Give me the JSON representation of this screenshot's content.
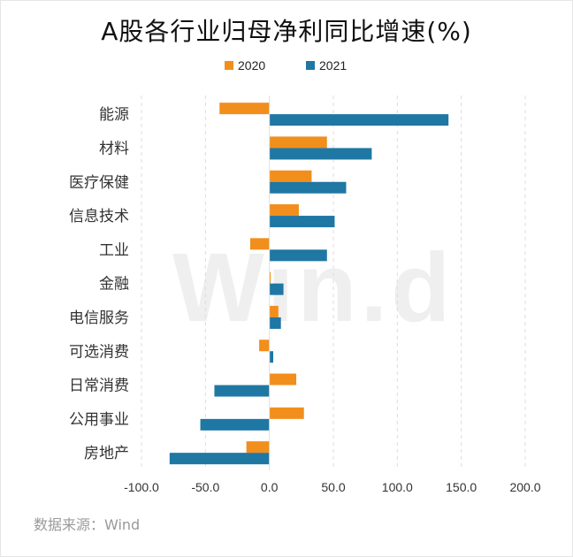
{
  "chart_data": {
    "type": "bar",
    "orientation": "horizontal",
    "title": "A股各行业归母净利同比增速(%)",
    "categories": [
      "能源",
      "材料",
      "医疗保健",
      "信息技术",
      "工业",
      "金融",
      "电信服务",
      "可选消费",
      "日常消费",
      "公用事业",
      "房地产"
    ],
    "series": [
      {
        "name": "2020",
        "color": "#f28e1c",
        "values": [
          -39,
          45,
          33,
          23,
          -15,
          1,
          7,
          -8,
          21,
          27,
          -18
        ]
      },
      {
        "name": "2021",
        "color": "#1f77a3",
        "values": [
          140,
          80,
          60,
          51,
          45,
          11,
          9,
          3,
          -43,
          -54,
          -78
        ]
      }
    ],
    "xlim": [
      -100,
      200
    ],
    "xticks": [
      "-100.0",
      "-50.0",
      "0.0",
      "50.0",
      "100.0",
      "150.0",
      "200.0"
    ],
    "xtick_values": [
      -100,
      -50,
      0,
      50,
      100,
      150,
      200
    ],
    "grid": true,
    "legend_position": "top"
  },
  "source": "数据来源：Wind",
  "watermark": "Win.d"
}
